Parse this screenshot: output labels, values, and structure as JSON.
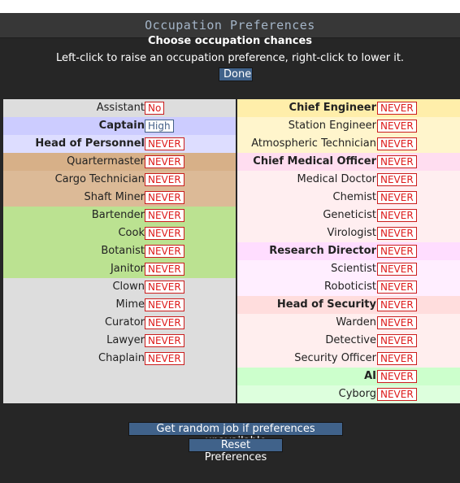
{
  "window": {
    "title": "Occupation Preferences"
  },
  "header": {
    "title": "Choose occupation chances",
    "subtitle": "Left-click to raise an occupation preference, right-click to lower it.",
    "done_label": "Done"
  },
  "left_jobs": [
    {
      "name": "Assistant",
      "pref": "No",
      "bold": false,
      "bg": "#dddddd"
    },
    {
      "name": "Captain",
      "pref": "High",
      "bold": true,
      "bg": "#ccccff"
    },
    {
      "name": "Head of Personnel",
      "pref": "NEVER",
      "bold": true,
      "bg": "#ddddff"
    },
    {
      "name": "Quartermaster",
      "pref": "NEVER",
      "bold": false,
      "bg": "#d7b088"
    },
    {
      "name": "Cargo Technician",
      "pref": "NEVER",
      "bold": false,
      "bg": "#dcba97"
    },
    {
      "name": "Shaft Miner",
      "pref": "NEVER",
      "bold": false,
      "bg": "#dcba97"
    },
    {
      "name": "Bartender",
      "pref": "NEVER",
      "bold": false,
      "bg": "#bbe291"
    },
    {
      "name": "Cook",
      "pref": "NEVER",
      "bold": false,
      "bg": "#bbe291"
    },
    {
      "name": "Botanist",
      "pref": "NEVER",
      "bold": false,
      "bg": "#bbe291"
    },
    {
      "name": "Janitor",
      "pref": "NEVER",
      "bold": false,
      "bg": "#bbe291"
    },
    {
      "name": "Clown",
      "pref": "NEVER",
      "bold": false,
      "bg": "#dddddd"
    },
    {
      "name": "Mime",
      "pref": "NEVER",
      "bold": false,
      "bg": "#dddddd"
    },
    {
      "name": "Curator",
      "pref": "NEVER",
      "bold": false,
      "bg": "#dddddd"
    },
    {
      "name": "Lawyer",
      "pref": "NEVER",
      "bold": false,
      "bg": "#dddddd"
    },
    {
      "name": "Chaplain",
      "pref": "NEVER",
      "bold": false,
      "bg": "#dddddd"
    }
  ],
  "right_jobs": [
    {
      "name": "Chief Engineer",
      "pref": "NEVER",
      "bold": true,
      "bg": "#ffeeaa"
    },
    {
      "name": "Station Engineer",
      "pref": "NEVER",
      "bold": false,
      "bg": "#fff5cc"
    },
    {
      "name": "Atmospheric Technician",
      "pref": "NEVER",
      "bold": false,
      "bg": "#fff5cc"
    },
    {
      "name": "Chief Medical Officer",
      "pref": "NEVER",
      "bold": true,
      "bg": "#ffddf0"
    },
    {
      "name": "Medical Doctor",
      "pref": "NEVER",
      "bold": false,
      "bg": "#ffeef0"
    },
    {
      "name": "Chemist",
      "pref": "NEVER",
      "bold": false,
      "bg": "#ffeef0"
    },
    {
      "name": "Geneticist",
      "pref": "NEVER",
      "bold": false,
      "bg": "#ffeef0"
    },
    {
      "name": "Virologist",
      "pref": "NEVER",
      "bold": false,
      "bg": "#ffeef0"
    },
    {
      "name": "Research Director",
      "pref": "NEVER",
      "bold": true,
      "bg": "#ffddff"
    },
    {
      "name": "Scientist",
      "pref": "NEVER",
      "bold": false,
      "bg": "#ffeeff"
    },
    {
      "name": "Roboticist",
      "pref": "NEVER",
      "bold": false,
      "bg": "#ffeeff"
    },
    {
      "name": "Head of Security",
      "pref": "NEVER",
      "bold": true,
      "bg": "#ffdddd"
    },
    {
      "name": "Warden",
      "pref": "NEVER",
      "bold": false,
      "bg": "#ffeeee"
    },
    {
      "name": "Detective",
      "pref": "NEVER",
      "bold": false,
      "bg": "#ffeeee"
    },
    {
      "name": "Security Officer",
      "pref": "NEVER",
      "bold": false,
      "bg": "#ffeeee"
    },
    {
      "name": "AI",
      "pref": "NEVER",
      "bold": true,
      "bg": "#ccffcc"
    },
    {
      "name": "Cyborg",
      "pref": "NEVER",
      "bold": false,
      "bg": "#ddffdd"
    }
  ],
  "footer": {
    "random_job_label": "Get random job if preferences unavailable",
    "reset_label": "Reset Preferences"
  }
}
